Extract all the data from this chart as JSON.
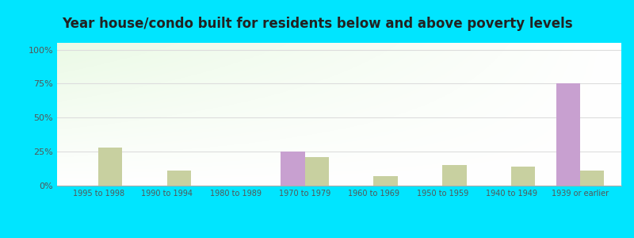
{
  "title": "Year house/condo built for residents below and above poverty levels",
  "categories": [
    "1995 to 1998",
    "1990 to 1994",
    "1980 to 1989",
    "1970 to 1979",
    "1960 to 1969",
    "1950 to 1959",
    "1940 to 1949",
    "1939 or earlier"
  ],
  "below_poverty": [
    0,
    0,
    0,
    25,
    0,
    0,
    0,
    75
  ],
  "above_poverty": [
    28,
    11,
    0,
    21,
    7,
    15,
    14,
    11
  ],
  "below_color": "#c8a0d0",
  "above_color": "#c8d0a0",
  "yticks": [
    0,
    25,
    50,
    75,
    100
  ],
  "ylim": [
    0,
    105
  ],
  "outer_bg": "#00e5ff",
  "title_fontsize": 12,
  "bar_width": 0.35,
  "bg_colors": [
    "#e8f5e0",
    "#f5fff5",
    "#ffffff"
  ],
  "grid_color": "#dddddd",
  "tick_color": "#555555"
}
